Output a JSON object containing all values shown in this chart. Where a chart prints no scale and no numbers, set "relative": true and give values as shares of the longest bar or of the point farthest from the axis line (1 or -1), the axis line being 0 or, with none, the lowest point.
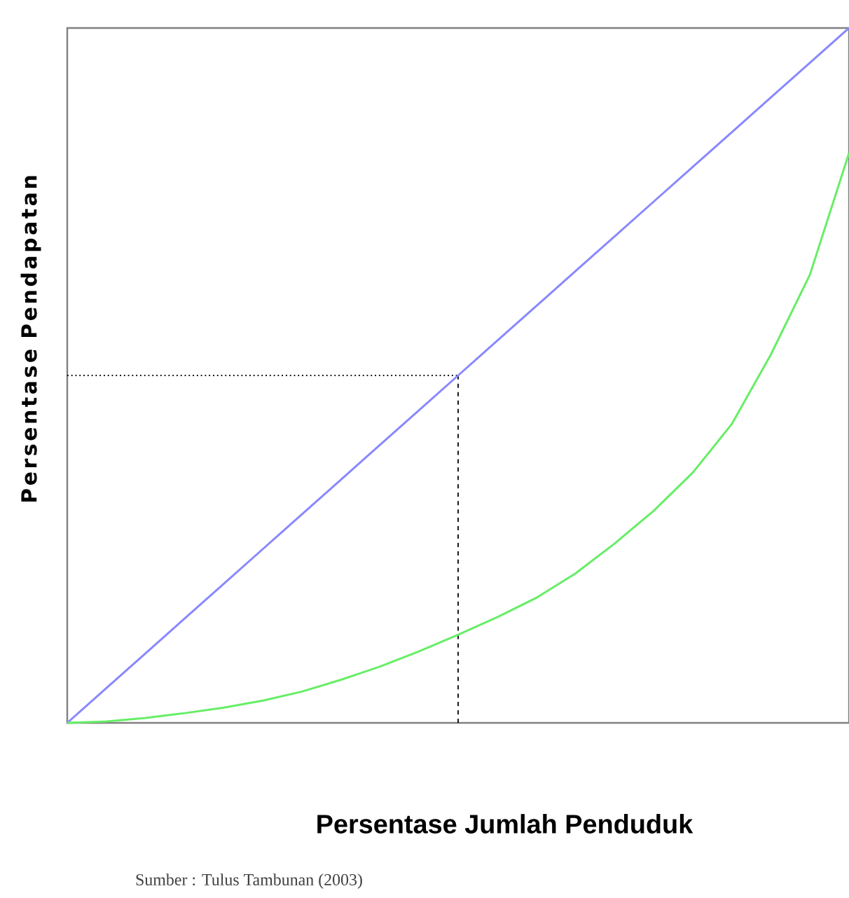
{
  "chart_data": {
    "type": "line",
    "relative": true,
    "xlabel": "Persentase Jumlah Penduduk",
    "ylabel": "Persentase Pendapatan",
    "annotations": [
      "Sumber : Tulus Tambunan (2003)"
    ],
    "categories": [
      null,
      null,
      null,
      null,
      null,
      null,
      null,
      null,
      null,
      null,
      null,
      null,
      null,
      null,
      null,
      null,
      null,
      null,
      null,
      null,
      null
    ],
    "series": [
      {
        "color": "#8888ff",
        "values": [
          0,
          0.05,
          0.1,
          0.15,
          0.2,
          0.25,
          0.3,
          0.35,
          0.4,
          0.45,
          0.5,
          0.55,
          0.6,
          0.65,
          0.7,
          0.75,
          0.8,
          0.85,
          0.9,
          0.95,
          1
        ]
      },
      {
        "color": "#66ee66",
        "values": [
          0,
          0.002,
          0.007,
          0.014,
          0.022,
          0.032,
          0.045,
          0.062,
          0.081,
          0.103,
          0.127,
          0.152,
          0.18,
          0.215,
          0.258,
          0.305,
          0.36,
          0.43,
          0.53,
          0.645,
          0.82
        ]
      }
    ],
    "marker": "none",
    "line_style": "solid"
  }
}
